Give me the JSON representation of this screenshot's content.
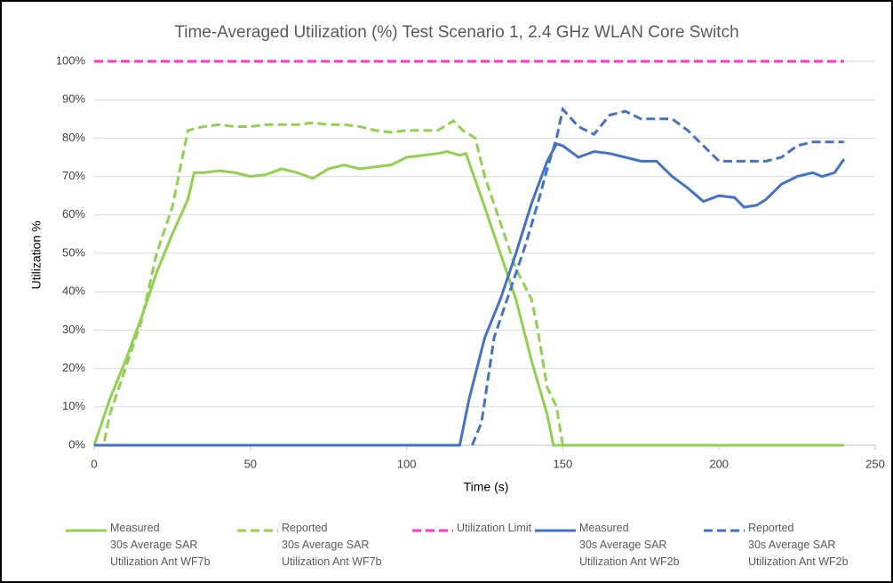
{
  "chart_data": {
    "type": "line",
    "title": "Time-Averaged Utilization (%) Test Scenario 1, 2.4 GHz WLAN Core Switch",
    "xlabel": "Time (s)",
    "ylabel": "Utilization %",
    "xlim": [
      0,
      250
    ],
    "xticks": [
      0,
      50,
      100,
      150,
      200,
      250
    ],
    "ylim": [
      0,
      100
    ],
    "yticks": [
      {
        "value": 0,
        "label": "0%"
      },
      {
        "value": 10,
        "label": "10%"
      },
      {
        "value": 20,
        "label": "20%"
      },
      {
        "value": 30,
        "label": "30%"
      },
      {
        "value": 40,
        "label": "40%"
      },
      {
        "value": 50,
        "label": "50%"
      },
      {
        "value": 60,
        "label": "60%"
      },
      {
        "value": 70,
        "label": "70%"
      },
      {
        "value": 80,
        "label": "80%"
      },
      {
        "value": 90,
        "label": "90%"
      },
      {
        "value": 100,
        "label": "100%"
      }
    ],
    "grid": true,
    "legend": "bottom",
    "series": [
      {
        "name": "Measured\n30s Average SAR\nUtilization Ant WF7b",
        "color": "#92d050",
        "dashed": false,
        "x": [
          0,
          5,
          10,
          15,
          20,
          25,
          30,
          32,
          35,
          40,
          45,
          50,
          55,
          60,
          65,
          70,
          75,
          80,
          85,
          90,
          95,
          100,
          105,
          110,
          113,
          117,
          119,
          125,
          130,
          135,
          140,
          145,
          147,
          240
        ],
        "values": [
          0,
          12,
          22,
          33,
          45,
          55,
          64,
          71,
          71,
          71.5,
          71,
          70,
          70.5,
          72,
          71,
          69.5,
          72,
          73,
          72,
          72.5,
          73,
          75,
          75.5,
          76,
          76.5,
          75.5,
          76,
          62,
          50,
          38,
          22,
          8,
          0,
          0
        ]
      },
      {
        "name": "Reported\n30s Average SAR\nUtilization Ant WF7b",
        "color": "#92d050",
        "dashed": true,
        "x": [
          0,
          3,
          5,
          10,
          15,
          20,
          25,
          30,
          35,
          40,
          45,
          50,
          55,
          60,
          65,
          70,
          75,
          80,
          85,
          90,
          95,
          100,
          105,
          110,
          115,
          118,
          122,
          125,
          130,
          135,
          140,
          142,
          145,
          148,
          150
        ],
        "values": [
          0,
          0,
          8,
          20,
          32,
          50,
          62,
          82,
          83,
          83.5,
          83,
          83,
          83.5,
          83.5,
          83.5,
          84,
          83.5,
          83.5,
          83,
          82,
          81.5,
          82,
          82,
          82,
          84.5,
          82,
          80,
          70,
          58,
          46,
          38,
          30,
          15,
          10,
          0
        ]
      },
      {
        "name": "Utilization Limit",
        "color": "#ff33cc",
        "dashed": true,
        "x": [
          0,
          240
        ],
        "values": [
          100,
          100
        ]
      },
      {
        "name": "Measured\n30s Average SAR\nUtilization Ant WF2b",
        "color": "#4472c4",
        "dashed": false,
        "x": [
          0,
          117,
          120,
          125,
          130,
          135,
          140,
          145,
          148,
          150,
          155,
          160,
          165,
          170,
          175,
          180,
          185,
          190,
          195,
          200,
          205,
          208,
          212,
          215,
          220,
          225,
          230,
          233,
          237,
          240
        ],
        "values": [
          0,
          0,
          12,
          28,
          38,
          50,
          63,
          74,
          78.5,
          78,
          75,
          76.5,
          76,
          75,
          74,
          74,
          70,
          67,
          63.5,
          65,
          64.5,
          62,
          62.5,
          64,
          68,
          70,
          71,
          70,
          71,
          74.5
        ]
      },
      {
        "name": "Reported\n30s Average SAR\nUtilization Ant WF2b",
        "color": "#4472c4",
        "dashed": true,
        "x": [
          121,
          124,
          128,
          133,
          138,
          142,
          145,
          148,
          150,
          155,
          160,
          165,
          170,
          175,
          180,
          185,
          190,
          195,
          200,
          205,
          210,
          215,
          220,
          225,
          230,
          235,
          240
        ],
        "values": [
          0,
          6,
          28,
          40,
          52,
          63,
          72,
          80,
          87.5,
          83,
          81,
          86,
          87,
          85,
          85,
          85,
          82,
          78,
          74,
          74,
          74,
          74,
          75,
          78,
          79,
          79,
          79
        ]
      }
    ]
  }
}
